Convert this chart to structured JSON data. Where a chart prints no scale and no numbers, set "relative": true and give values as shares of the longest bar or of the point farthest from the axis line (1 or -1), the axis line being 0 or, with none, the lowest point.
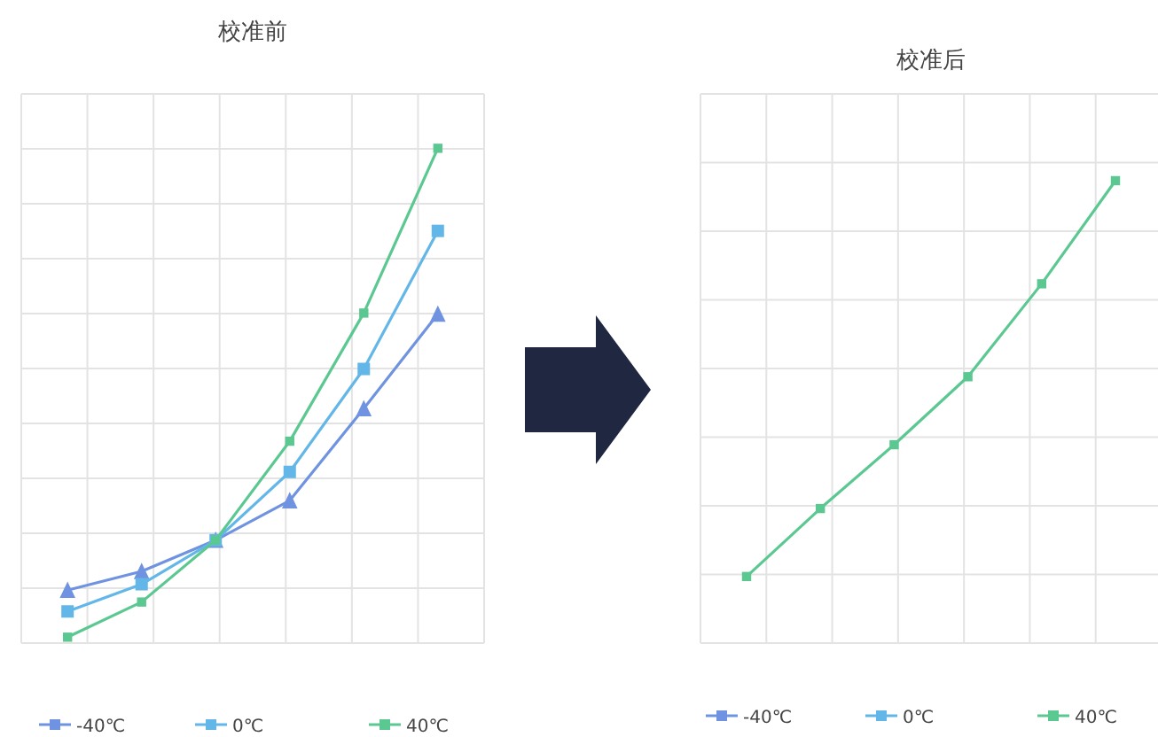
{
  "chart_data": [
    {
      "type": "line",
      "title": "校准前",
      "relative": true,
      "grid": true,
      "legend": "bottom",
      "categories": [
        null,
        null,
        null,
        null,
        null,
        null
      ],
      "series": [
        {
          "name": "-40℃",
          "color": "#6f93e0",
          "marker": "triangle",
          "values": [
            0.107,
            0.145,
            0.208,
            0.288,
            0.474,
            0.665
          ]
        },
        {
          "name": "0℃",
          "color": "#63b6e8",
          "marker": "square",
          "values": [
            0.064,
            0.119,
            0.208,
            0.346,
            0.554,
            0.833
          ]
        },
        {
          "name": "40℃",
          "color": "#5cc891",
          "marker": "square",
          "values": [
            0.012,
            0.083,
            0.208,
            0.408,
            0.667,
            1
          ]
        }
      ]
    },
    {
      "type": "line",
      "title": "校准后",
      "relative": true,
      "grid": true,
      "legend": "bottom",
      "categories": [
        null,
        null,
        null,
        null,
        null,
        null
      ],
      "series": [
        {
          "name": "-40℃",
          "color": "#6f93e0",
          "marker": "triangle",
          "values": [
            null,
            null,
            null,
            null,
            null,
            null
          ]
        },
        {
          "name": "0℃",
          "color": "#63b6e8",
          "marker": "square",
          "values": [
            null,
            null,
            null,
            null,
            null,
            null
          ]
        },
        {
          "name": "40℃",
          "color": "#5cc891",
          "marker": "square",
          "values": [
            0.144,
            0.291,
            0.429,
            0.576,
            0.777,
            1
          ]
        }
      ]
    }
  ]
}
